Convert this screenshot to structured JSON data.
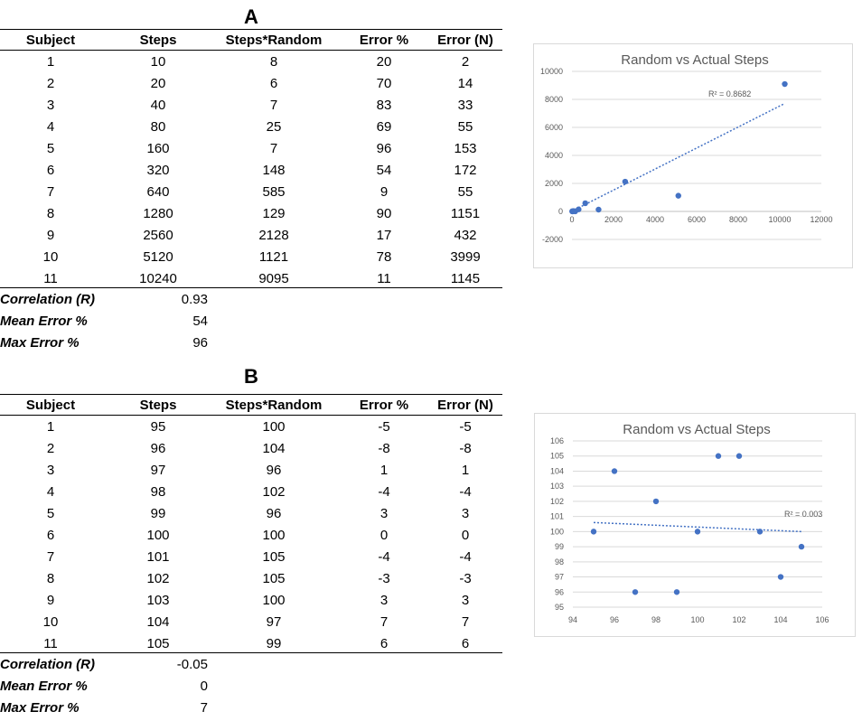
{
  "columns": [
    "Subject",
    "Steps",
    "Steps*Random",
    "Error %",
    "Error (N)"
  ],
  "stat_labels": [
    "Correlation (R)",
    "Mean Error %",
    "Max Error %"
  ],
  "tables": [
    {
      "title": "A",
      "rows": [
        [
          "1",
          "10",
          "8",
          "20",
          "2"
        ],
        [
          "2",
          "20",
          "6",
          "70",
          "14"
        ],
        [
          "3",
          "40",
          "7",
          "83",
          "33"
        ],
        [
          "4",
          "80",
          "25",
          "69",
          "55"
        ],
        [
          "5",
          "160",
          "7",
          "96",
          "153"
        ],
        [
          "6",
          "320",
          "148",
          "54",
          "172"
        ],
        [
          "7",
          "640",
          "585",
          "9",
          "55"
        ],
        [
          "8",
          "1280",
          "129",
          "90",
          "1151"
        ],
        [
          "9",
          "2560",
          "2128",
          "17",
          "432"
        ],
        [
          "10",
          "5120",
          "1121",
          "78",
          "3999"
        ],
        [
          "11",
          "10240",
          "9095",
          "11",
          "1145"
        ]
      ],
      "stats": [
        "0.93",
        "54",
        "96"
      ]
    },
    {
      "title": "B",
      "rows": [
        [
          "1",
          "95",
          "100",
          "-5",
          "-5"
        ],
        [
          "2",
          "96",
          "104",
          "-8",
          "-8"
        ],
        [
          "3",
          "97",
          "96",
          "1",
          "1"
        ],
        [
          "4",
          "98",
          "102",
          "-4",
          "-4"
        ],
        [
          "5",
          "99",
          "96",
          "3",
          "3"
        ],
        [
          "6",
          "100",
          "100",
          "0",
          "0"
        ],
        [
          "7",
          "101",
          "105",
          "-4",
          "-4"
        ],
        [
          "8",
          "102",
          "105",
          "-3",
          "-3"
        ],
        [
          "9",
          "103",
          "100",
          "3",
          "3"
        ],
        [
          "10",
          "104",
          "97",
          "7",
          "7"
        ],
        [
          "11",
          "105",
          "99",
          "6",
          "6"
        ]
      ],
      "stats": [
        "-0.05",
        "0",
        "7"
      ]
    }
  ],
  "colors": {
    "marker": "#4472c4",
    "trendline": "#4472c4",
    "gridline": "#d9d9d9",
    "axis_text": "#595959"
  },
  "chart_data": [
    {
      "type": "scatter",
      "title": "Random vs Actual Steps",
      "xlabel": "",
      "ylabel": "",
      "grid": true,
      "xlim": [
        0,
        12000
      ],
      "ylim": [
        -2000,
        10000
      ],
      "x_ticks": [
        "0",
        "2000",
        "4000",
        "6000",
        "8000",
        "10000",
        "12000"
      ],
      "y_ticks": [
        "-2000",
        "0",
        "2000",
        "4000",
        "6000",
        "8000",
        "10000"
      ],
      "x": [
        10,
        20,
        40,
        80,
        160,
        320,
        640,
        1280,
        2560,
        5120,
        10240
      ],
      "y": [
        8,
        6,
        7,
        25,
        7,
        148,
        585,
        129,
        2128,
        1121,
        9095
      ],
      "trendline": {
        "type": "linear",
        "from": [
          0,
          20
        ],
        "to": [
          10240,
          7710
        ]
      },
      "r_squared": "R² = 0.8682"
    },
    {
      "type": "scatter",
      "title": "Random vs Actual Steps",
      "xlabel": "",
      "ylabel": "",
      "grid": true,
      "xlim": [
        94,
        106
      ],
      "ylim": [
        95,
        106
      ],
      "x_ticks": [
        "94",
        "96",
        "98",
        "100",
        "102",
        "104",
        "106"
      ],
      "y_ticks": [
        "95",
        "96",
        "97",
        "98",
        "99",
        "100",
        "101",
        "102",
        "103",
        "104",
        "105",
        "106"
      ],
      "x": [
        95,
        96,
        97,
        98,
        99,
        100,
        101,
        102,
        103,
        104,
        105
      ],
      "y": [
        100,
        104,
        96,
        102,
        96,
        100,
        105,
        105,
        100,
        97,
        99
      ],
      "trendline": {
        "type": "linear",
        "from": [
          95,
          100.6
        ],
        "to": [
          105,
          100.0
        ]
      },
      "r_squared": "R² = 0.003"
    }
  ]
}
